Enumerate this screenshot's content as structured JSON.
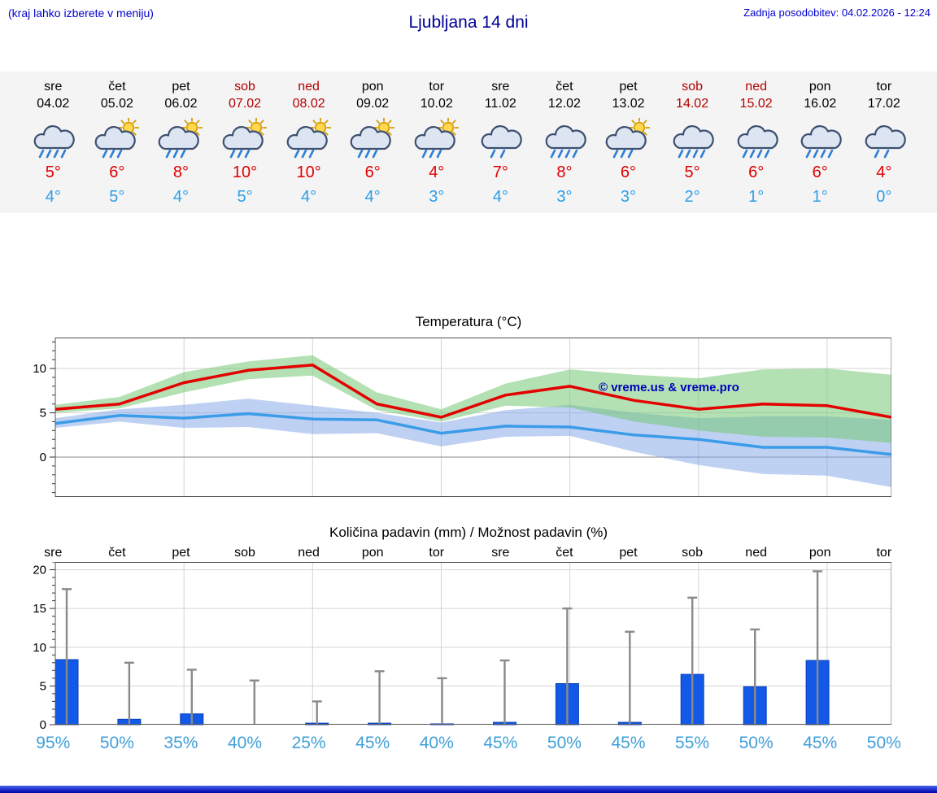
{
  "header": {
    "menu_hint": "(kraj lahko izberete v meniju)",
    "title": "Ljubljana 14 dni",
    "last_update": "Zadnja posodobitev: 04.02.2026 - 12:24"
  },
  "colors": {
    "link_blue": "#0000cc",
    "title_blue": "#000099",
    "weekend_red": "#b40000",
    "temp_max_red": "#e00000",
    "temp_min_blue": "#2e9ee8",
    "bar": "#1259e8",
    "bar_stroke": "#0b3fb8",
    "whisker": "#8a8a8a",
    "percent_blue": "#3f9fd8"
  },
  "forecast": {
    "days": [
      {
        "name": "sre",
        "date": "04.02",
        "weekend": false,
        "icon": "rain",
        "tmax": "5°",
        "tmin": "4°"
      },
      {
        "name": "čet",
        "date": "05.02",
        "weekend": false,
        "icon": "sun-showers",
        "tmax": "6°",
        "tmin": "5°"
      },
      {
        "name": "pet",
        "date": "06.02",
        "weekend": false,
        "icon": "sun-showers",
        "tmax": "8°",
        "tmin": "4°"
      },
      {
        "name": "sob",
        "date": "07.02",
        "weekend": true,
        "icon": "sun-showers",
        "tmax": "10°",
        "tmin": "5°"
      },
      {
        "name": "ned",
        "date": "08.02",
        "weekend": true,
        "icon": "sun-showers",
        "tmax": "10°",
        "tmin": "4°"
      },
      {
        "name": "pon",
        "date": "09.02",
        "weekend": false,
        "icon": "sun-showers",
        "tmax": "6°",
        "tmin": "4°"
      },
      {
        "name": "tor",
        "date": "10.02",
        "weekend": false,
        "icon": "sun-showers",
        "tmax": "4°",
        "tmin": "3°"
      },
      {
        "name": "sre",
        "date": "11.02",
        "weekend": false,
        "icon": "light-rain",
        "tmax": "7°",
        "tmin": "4°"
      },
      {
        "name": "čet",
        "date": "12.02",
        "weekend": false,
        "icon": "rain",
        "tmax": "8°",
        "tmin": "3°"
      },
      {
        "name": "pet",
        "date": "13.02",
        "weekend": false,
        "icon": "sun-showers",
        "tmax": "6°",
        "tmin": "3°"
      },
      {
        "name": "sob",
        "date": "14.02",
        "weekend": true,
        "icon": "rain",
        "tmax": "5°",
        "tmin": "2°"
      },
      {
        "name": "ned",
        "date": "15.02",
        "weekend": true,
        "icon": "rain",
        "tmax": "6°",
        "tmin": "1°"
      },
      {
        "name": "pon",
        "date": "16.02",
        "weekend": false,
        "icon": "rain",
        "tmax": "6°",
        "tmin": "1°"
      },
      {
        "name": "tor",
        "date": "17.02",
        "weekend": false,
        "icon": "light-rain",
        "tmax": "4°",
        "tmin": "0°"
      }
    ]
  },
  "chart_data": [
    {
      "type": "line",
      "title": "Temperatura (°C)",
      "x": [
        "04.02",
        "05.02",
        "06.02",
        "07.02",
        "08.02",
        "09.02",
        "10.02",
        "11.02",
        "12.02",
        "13.02",
        "14.02",
        "15.02",
        "16.02",
        "17.02"
      ],
      "ylim": [
        -4.5,
        13.5
      ],
      "yticks": [
        0,
        5,
        10
      ],
      "grid": true,
      "watermark": "© vreme.us & vreme.pro",
      "series": [
        {
          "name": "max temperature",
          "color": "#e30000",
          "values": [
            5.4,
            6.0,
            8.4,
            9.8,
            10.4,
            6.0,
            4.5,
            7.0,
            8.0,
            6.4,
            5.4,
            6.0,
            5.8,
            4.5
          ]
        },
        {
          "name": "min temperature",
          "color": "#3b9ce8",
          "values": [
            3.8,
            4.7,
            4.4,
            4.9,
            4.3,
            4.2,
            2.7,
            3.5,
            3.4,
            2.5,
            2.0,
            1.1,
            1.1,
            0.3
          ]
        }
      ],
      "bands": [
        {
          "name": "max temperature range",
          "color": "#74c874",
          "opacity": 0.55,
          "upper": [
            5.9,
            6.8,
            9.6,
            10.8,
            11.5,
            7.3,
            5.4,
            8.3,
            9.9,
            9.3,
            8.9,
            9.9,
            10.0,
            9.3
          ],
          "lower": [
            5.0,
            5.5,
            7.3,
            8.8,
            9.2,
            5.3,
            4.0,
            5.8,
            5.6,
            4.0,
            3.0,
            2.3,
            2.2,
            1.6
          ]
        },
        {
          "name": "min temperature range",
          "color": "#7fa3e8",
          "opacity": 0.5,
          "upper": [
            4.4,
            5.4,
            5.9,
            6.6,
            5.8,
            5.0,
            3.9,
            5.3,
            5.9,
            5.0,
            4.4,
            4.6,
            4.6,
            4.2
          ],
          "lower": [
            3.3,
            4.0,
            3.3,
            3.4,
            2.6,
            2.7,
            1.2,
            2.3,
            2.4,
            0.6,
            -0.9,
            -1.9,
            -2.1,
            -3.4
          ]
        }
      ]
    },
    {
      "type": "bar",
      "title": "Količina padavin (mm) / Možnost padavin (%)",
      "categories": [
        "sre",
        "čet",
        "pet",
        "sob",
        "ned",
        "pon",
        "tor",
        "sre",
        "čet",
        "pet",
        "sob",
        "ned",
        "pon",
        "tor"
      ],
      "values": [
        8.4,
        0.7,
        1.4,
        0,
        0.2,
        0.2,
        0.1,
        0.3,
        5.3,
        0.3,
        6.5,
        4.9,
        8.3,
        0
      ],
      "whisker_max": [
        17.5,
        8.0,
        7.1,
        5.7,
        3.0,
        6.9,
        6.0,
        8.3,
        15.0,
        12.0,
        16.4,
        12.3,
        19.8,
        0
      ],
      "percent_labels": [
        "95%",
        "50%",
        "35%",
        "40%",
        "25%",
        "45%",
        "40%",
        "45%",
        "50%",
        "45%",
        "55%",
        "50%",
        "45%",
        "50%"
      ],
      "ylim": [
        0,
        21
      ],
      "yticks": [
        0,
        5,
        10,
        15,
        20
      ],
      "grid": true
    }
  ]
}
